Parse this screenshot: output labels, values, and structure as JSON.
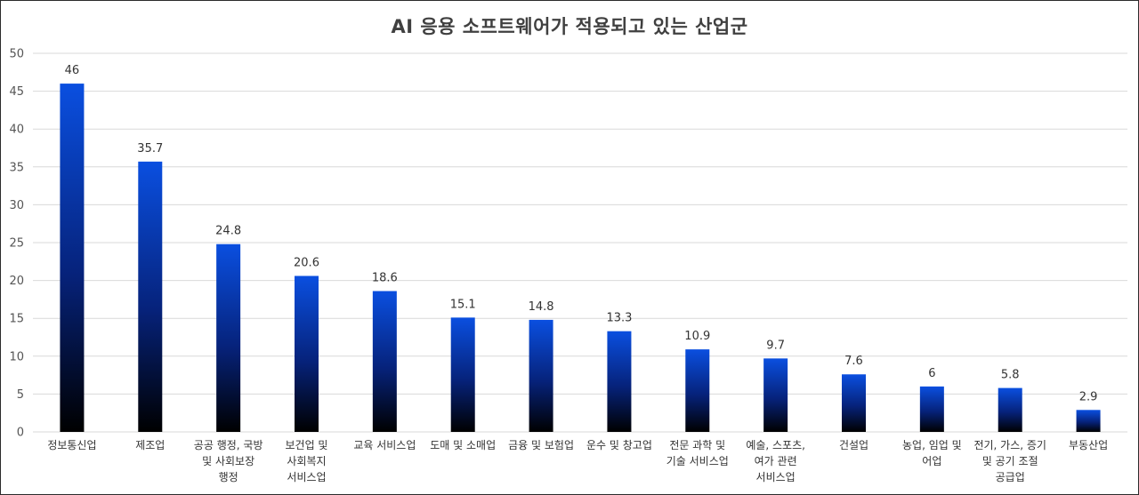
{
  "chart_data": {
    "type": "bar",
    "title": "AI 응용 소프트웨어가 적용되고 있는 산업군",
    "xlabel": "",
    "ylabel": "",
    "ylim": [
      0,
      50
    ],
    "yticks": [
      0,
      5,
      10,
      15,
      20,
      25,
      30,
      35,
      40,
      45,
      50
    ],
    "grid": true,
    "legend": "none",
    "categories": [
      [
        "정보통신업"
      ],
      [
        "제조업"
      ],
      [
        "공공 행정, 국방",
        "및 사회보장",
        "행정"
      ],
      [
        "보건업 및",
        "사회복지",
        "서비스업"
      ],
      [
        "교육 서비스업"
      ],
      [
        "도매 및 소매업"
      ],
      [
        "금융 및 보험업"
      ],
      [
        "운수 및 창고업"
      ],
      [
        "전문 과학 및",
        "기술 서비스업"
      ],
      [
        "예술, 스포츠,",
        "여가 관련",
        "서비스업"
      ],
      [
        "건설업"
      ],
      [
        "농업, 임업 및",
        "어업"
      ],
      [
        "전기, 가스, 증기",
        "및 공기 조절",
        "공급업"
      ],
      [
        "부동산업"
      ]
    ],
    "values": [
      46,
      35.7,
      24.8,
      20.6,
      18.6,
      15.1,
      14.8,
      13.3,
      10.9,
      9.7,
      7.6,
      6,
      5.8,
      2.9
    ],
    "value_labels": [
      "46",
      "35.7",
      "24.8",
      "20.6",
      "18.6",
      "15.1",
      "14.8",
      "13.3",
      "10.9",
      "9.7",
      "7.6",
      "6",
      "5.8",
      "2.9"
    ],
    "colors": {
      "bar_top": "#0a4fe0",
      "bar_bottom": "#000000",
      "grid": "#d9d9d9"
    }
  }
}
